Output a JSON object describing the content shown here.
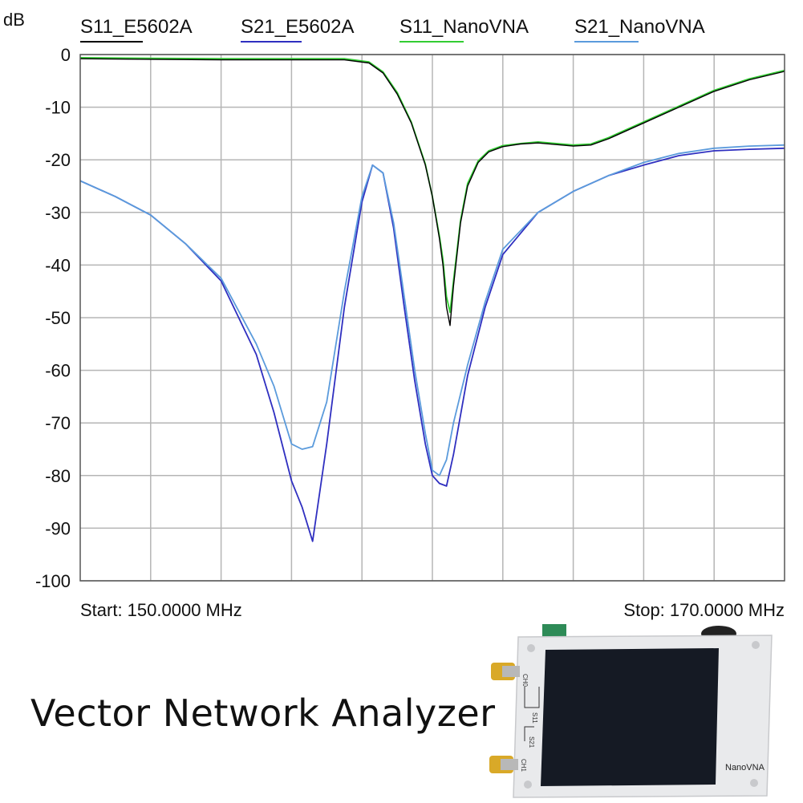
{
  "chart_data": {
    "type": "line",
    "ylabel": "dB",
    "ylim": [
      -100,
      0
    ],
    "yticks": [
      "0",
      "-10",
      "-20",
      "-30",
      "-40",
      "-50",
      "-60",
      "-70",
      "-80",
      "-90",
      "-100"
    ],
    "ytick_values": [
      0,
      -10,
      -20,
      -30,
      -40,
      -50,
      -60,
      -70,
      -80,
      -90,
      -100
    ],
    "xlim": [
      150.0,
      170.0
    ],
    "x_vertical_gridlines_mhz": [
      152,
      154,
      156,
      158,
      160,
      162,
      164,
      166,
      168
    ],
    "grid": true,
    "legend_placement": "top",
    "start_label": "Start: 150.0000 MHz",
    "stop_label": "Stop: 170.0000 MHz",
    "series": [
      {
        "name": "S11_E5602A",
        "color": "#000000",
        "x": [
          150,
          152,
          154,
          156,
          157.5,
          158.2,
          158.6,
          159.0,
          159.4,
          159.8,
          160.0,
          160.2,
          160.3,
          160.4,
          160.5,
          160.6,
          160.8,
          161.0,
          161.3,
          161.6,
          162,
          162.5,
          163,
          164,
          164.5,
          165,
          166,
          167,
          168,
          169,
          170
        ],
        "y": [
          -0.8,
          -0.9,
          -1.0,
          -1.0,
          -1.0,
          -1.6,
          -3.5,
          -7.5,
          -13.0,
          -21.0,
          -27.0,
          -35.0,
          -40.0,
          -48.0,
          -51.5,
          -44.0,
          -32.0,
          -25.0,
          -20.5,
          -18.5,
          -17.5,
          -17.0,
          -16.8,
          -17.4,
          -17.2,
          -16.0,
          -13.0,
          -10.0,
          -7.0,
          -4.8,
          -3.2
        ]
      },
      {
        "name": "S21_E5602A",
        "color": "#2f2fc0",
        "x": [
          150,
          151,
          152,
          153,
          154,
          155,
          155.5,
          156.0,
          156.3,
          156.6,
          157,
          157.5,
          158.0,
          158.3,
          158.6,
          158.9,
          159.2,
          159.5,
          159.8,
          160.0,
          160.2,
          160.4,
          160.6,
          161.0,
          161.5,
          162,
          163,
          164,
          165,
          166,
          167,
          168,
          169,
          170
        ],
        "y": [
          -24.0,
          -27.0,
          -30.5,
          -36.0,
          -43.0,
          -57.0,
          -68.0,
          -81.0,
          -86.0,
          -92.5,
          -74.0,
          -48.0,
          -28.0,
          -21.0,
          -22.5,
          -33.0,
          -48.0,
          -62.0,
          -74.0,
          -80.0,
          -81.5,
          -82.0,
          -76.0,
          -61.0,
          -48.0,
          -38.0,
          -30.0,
          -26.0,
          -23.0,
          -21.0,
          -19.2,
          -18.3,
          -18.0,
          -17.8
        ]
      },
      {
        "name": "S11_NanoVNA",
        "color": "#33cc33",
        "x": [
          150,
          152,
          154,
          156,
          157.5,
          158.2,
          158.6,
          159.0,
          159.4,
          159.8,
          160.0,
          160.2,
          160.3,
          160.4,
          160.5,
          160.6,
          160.8,
          161.0,
          161.3,
          161.6,
          162,
          162.5,
          163,
          164,
          164.5,
          165,
          166,
          167,
          168,
          169,
          170
        ],
        "y": [
          -0.6,
          -0.7,
          -0.8,
          -0.8,
          -0.8,
          -1.4,
          -3.3,
          -7.2,
          -12.8,
          -20.8,
          -27.0,
          -34.5,
          -39.0,
          -46.0,
          -49.0,
          -43.0,
          -31.5,
          -24.5,
          -20.2,
          -18.3,
          -17.3,
          -16.9,
          -16.6,
          -17.2,
          -17.0,
          -15.8,
          -12.8,
          -9.8,
          -6.8,
          -4.6,
          -3.0
        ]
      },
      {
        "name": "S21_NanoVNA",
        "color": "#5b9bdc",
        "x": [
          150,
          151,
          152,
          153,
          154,
          155,
          155.5,
          156.0,
          156.3,
          156.6,
          157,
          157.5,
          158.0,
          158.3,
          158.6,
          158.9,
          159.2,
          159.5,
          159.8,
          160.0,
          160.2,
          160.4,
          160.6,
          161.0,
          161.5,
          162,
          163,
          164,
          165,
          166,
          167,
          168,
          169,
          170
        ],
        "y": [
          -24.0,
          -27.0,
          -30.5,
          -36.0,
          -42.5,
          -55.0,
          -63.0,
          -74.0,
          -75.0,
          -74.5,
          -66.0,
          -45.0,
          -27.0,
          -21.0,
          -22.5,
          -32.0,
          -46.0,
          -60.0,
          -72.0,
          -79.0,
          -80.0,
          -77.0,
          -70.0,
          -59.0,
          -47.0,
          -37.0,
          -30.0,
          -26.0,
          -23.0,
          -20.5,
          -18.8,
          -17.8,
          -17.4,
          -17.2
        ]
      }
    ]
  },
  "banner": {
    "title": "Vector Network Analyzer"
  },
  "device": {
    "brand": "NanoVNA",
    "port_ch0": "CH0",
    "port_ch1": "CH1",
    "trace_s11": "S11",
    "trace_s21": "S21",
    "body_color": "#e9eaec",
    "screen_color": "#151a24",
    "connector_color": "#d9a928"
  }
}
